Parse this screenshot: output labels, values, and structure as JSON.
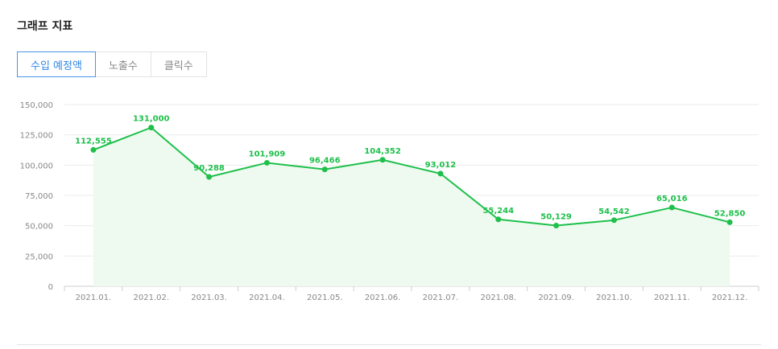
{
  "section": {
    "title": "그래프 지표"
  },
  "tabs": [
    {
      "label": "수입 예정액",
      "active": true
    },
    {
      "label": "노출수",
      "active": false
    },
    {
      "label": "클릭수",
      "active": false
    }
  ],
  "colors": {
    "line": "#1ec04b",
    "area": "#eefaef",
    "accent_tab": "#2e86e6",
    "grid": "#ebebeb"
  },
  "chart_data": {
    "type": "area",
    "categories": [
      "2021.01.",
      "2021.02.",
      "2021.03.",
      "2021.04.",
      "2021.05.",
      "2021.06.",
      "2021.07.",
      "2021.08.",
      "2021.09.",
      "2021.10.",
      "2021.11.",
      "2021.12."
    ],
    "values": [
      112555,
      131000,
      90288,
      101909,
      96466,
      104352,
      93012,
      55244,
      50129,
      54542,
      65016,
      52850
    ],
    "value_labels": [
      "112,555",
      "131,000",
      "90,288",
      "101,909",
      "96,466",
      "104,352",
      "93,012",
      "55,244",
      "50,129",
      "54,542",
      "65,016",
      "52,850"
    ],
    "y_ticks": [
      "0",
      "25,000",
      "50,000",
      "75,000",
      "100,000",
      "125,000",
      "150,000"
    ],
    "ylim": [
      0,
      150000
    ],
    "grid": true,
    "title": "",
    "xlabel": "",
    "ylabel": ""
  }
}
